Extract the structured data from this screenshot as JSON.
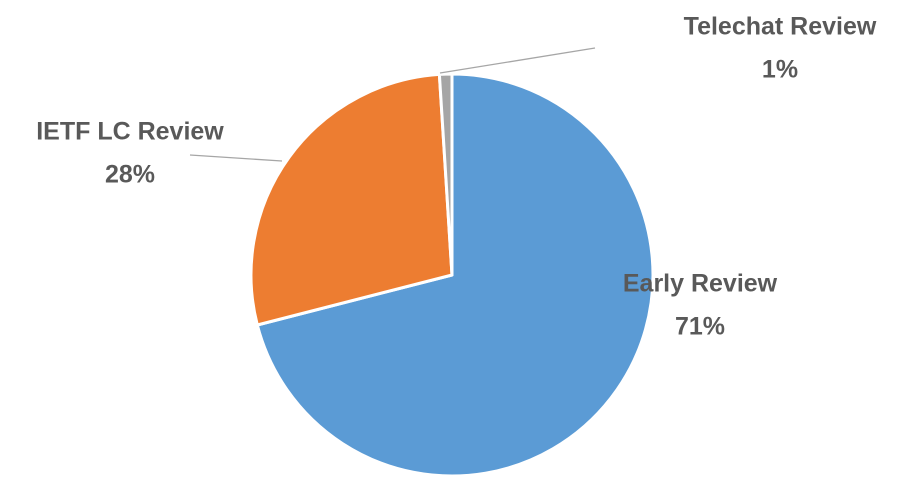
{
  "chart_data": {
    "type": "pie",
    "categories": [
      "Early Review",
      "IETF LC Review",
      "Telechat Review"
    ],
    "values": [
      71,
      28,
      1
    ],
    "value_labels": [
      "71%",
      "28%",
      "1%"
    ],
    "colors": [
      "#5b9bd5",
      "#ed7d31",
      "#a5a5a5"
    ]
  }
}
